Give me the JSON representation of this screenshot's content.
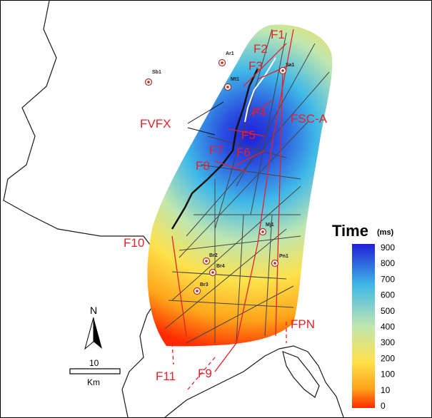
{
  "legend": {
    "title": "Time",
    "unit": "(ms)",
    "ticks": [
      "900",
      "800",
      "700",
      "600",
      "500",
      "400",
      "300",
      "200",
      "100",
      "10",
      "0"
    ],
    "colors": {
      "high": "#1f1fd8",
      "mid_high": "#3fb8e8",
      "mid": "#bfe6b0",
      "mid_low": "#ffe14a",
      "low": "#ff2a00"
    }
  },
  "faults": {
    "F1": "F1",
    "F2": "F2",
    "F3": "F3",
    "F4": "F4",
    "F5": "F5",
    "F6": "F6",
    "F7": "F7",
    "F8": "F8",
    "F9": "F9",
    "F10": "F10",
    "F11": "F11",
    "FVFX": "FVFX",
    "FSC_A": "FSC-A",
    "FPN": "FPN"
  },
  "wells": {
    "Sb1": "Sb1",
    "Ar1": "Ar1",
    "Mt1": "Mt1",
    "Sa1": "Sa1",
    "Mj1": "Mj1",
    "Pn1": "Pn1",
    "Br2": "Br2",
    "Br4": "Br4",
    "Br3": "Br3"
  },
  "north_arrow": {
    "label": "N"
  },
  "scale_bar": {
    "value": "10",
    "unit": "Km"
  },
  "colors": {
    "fault": "#e8202a",
    "coast": "#1a1a1a",
    "profile": "#444444"
  },
  "icons": {
    "well": "well-circle-icon",
    "north": "north-arrow-icon"
  }
}
